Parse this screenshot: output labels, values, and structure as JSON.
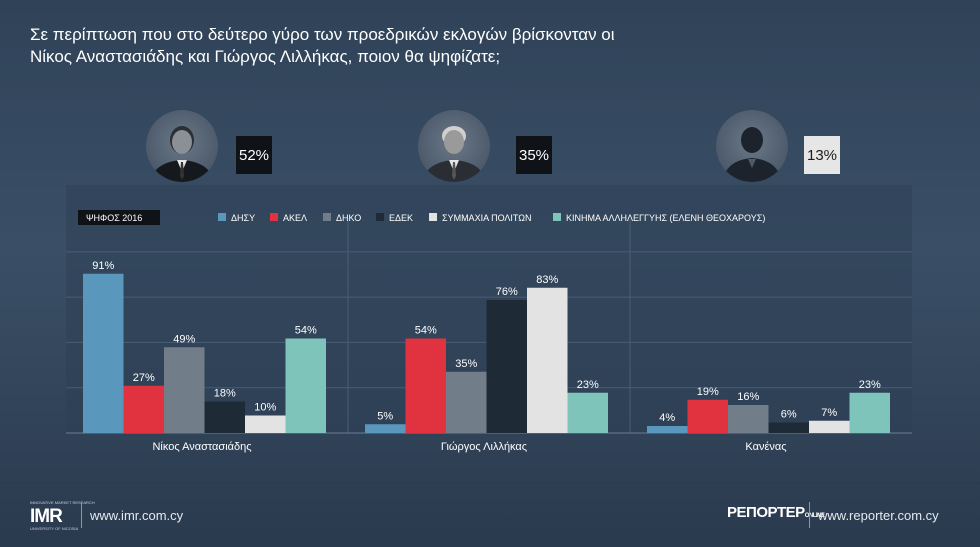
{
  "title_line1": "Σε περίπτωση που στο δεύτερο γύρο των προεδρικών εκλογών βρίσκονταν οι",
  "title_line2": "Νίκος Αναστασιάδης και Γιώργος Λιλλήκας, ποιον θα ψηφίζατε;",
  "candidates": [
    {
      "name": "Νίκος Αναστασιάδης",
      "share": "52%",
      "avatar_icon": "person-photo-icon"
    },
    {
      "name": "Γιώργος Λιλλήκας",
      "share": "35%",
      "avatar_icon": "person-photo-icon"
    },
    {
      "name": "Κανένας",
      "share": "13%",
      "avatar_icon": "anonymous-person-icon"
    }
  ],
  "legend_label": "ΨΗΦΟΣ 2016",
  "chart_data": {
    "type": "bar",
    "categories": [
      "Νίκος Αναστασιάδης",
      "Γιώργος Λιλλήκας",
      "Κανένας"
    ],
    "series": [
      {
        "name": "ΔΗΣΥ",
        "color": "#5a97bd",
        "values": [
          91,
          5,
          4
        ],
        "labels": [
          "91%",
          "5%",
          "4%"
        ]
      },
      {
        "name": "ΑΚΕΛ",
        "color": "#e0333f",
        "values": [
          27,
          54,
          19
        ],
        "labels": [
          "27%",
          "54%",
          "19%"
        ]
      },
      {
        "name": "ΔΗΚΟ",
        "color": "#717d89",
        "values": [
          49,
          35,
          16
        ],
        "labels": [
          "49%",
          "35%",
          "16%"
        ]
      },
      {
        "name": "ΕΔΕΚ",
        "color": "#1f2a37",
        "values": [
          18,
          76,
          6
        ],
        "labels": [
          "18%",
          "76%",
          "6%"
        ]
      },
      {
        "name": "ΣΥΜΜΑΧΙΑ ΠΟΛΙΤΩΝ",
        "color": "#e3e3e3",
        "values": [
          10,
          83,
          7
        ],
        "labels": [
          "10%",
          "83%",
          "7%"
        ]
      },
      {
        "name": "ΚΙΝΗΜΑ ΑΛΛΗΛΕΓΓΥΗΣ (ΕΛΕΝΗ ΘΕΟΧΑΡΟΥΣ)",
        "color": "#7fc4ba",
        "values": [
          54,
          23,
          23
        ],
        "labels": [
          "54%",
          "23%",
          "23%"
        ]
      }
    ],
    "ylim": [
      0,
      100
    ],
    "grid": true,
    "legend": "top"
  },
  "footer": {
    "imr_logo_text": "IMR",
    "imr_logo_sub_top": "INNOVATIVE MARKET RESEARCH",
    "imr_logo_sub_bottom": "UNIVERSITY OF NICOSIA",
    "imr_url": "www.imr.com.cy",
    "reporter_logo_text": "ΡΕΠΟΡΤΕΡ",
    "reporter_logo_sub": "ONLINE",
    "reporter_url": "www.reporter.com.cy"
  }
}
